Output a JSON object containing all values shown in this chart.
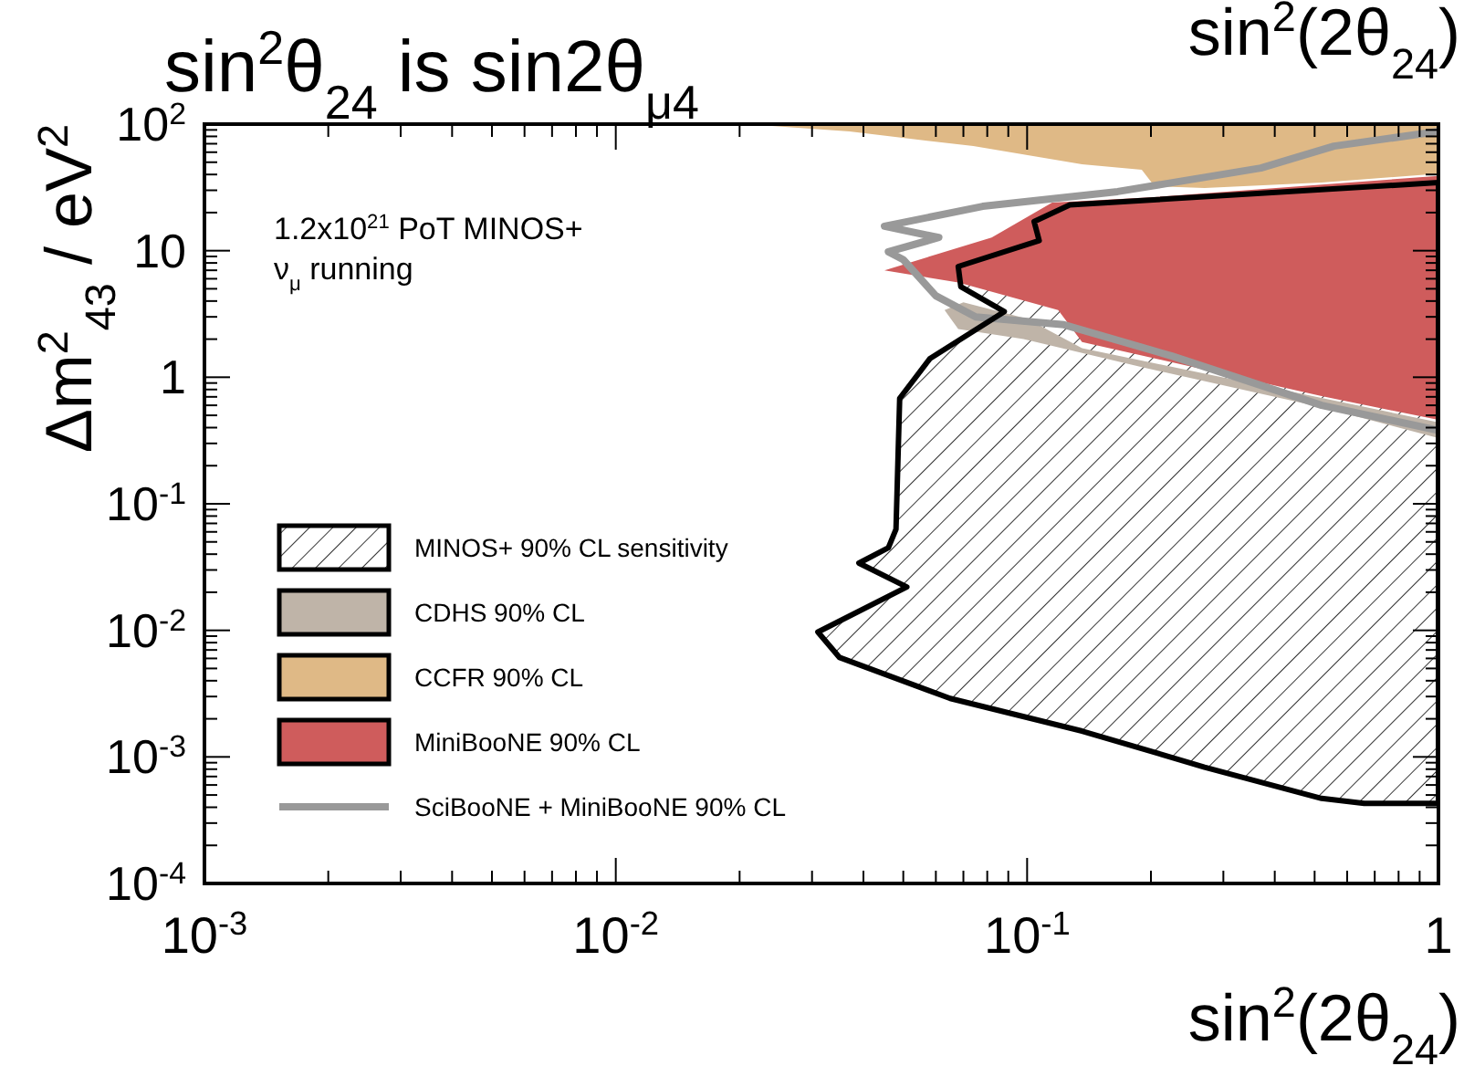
{
  "chart_data": {
    "type": "area",
    "title": "sin$^{2}$θ$_{24}$  is sin2θ$_{μ4}$",
    "xlabel": "sin$^{2}$(2θ$_{24}$)",
    "ylabel": "Δm$^{2}$$_{43}$ / eV$^{2}$",
    "annotations": [
      "sin$^{2}$(2θ$_{24}$)",
      "1.2x10$^{21}$ PoT MINOS+",
      "ν$_{μ}$ running"
    ],
    "log": "xy",
    "legend": "bottom left",
    "xlim": [
      0.001,
      1
    ],
    "ylim": [
      0.0001,
      100
    ],
    "xticks": [
      {
        "value": 0.001,
        "label": "10$^{-3}$"
      },
      {
        "value": 0.002,
        "label": null
      },
      {
        "value": 0.003,
        "label": null
      },
      {
        "value": 0.004,
        "label": null
      },
      {
        "value": 0.005,
        "label": null
      },
      {
        "value": 0.006,
        "label": null
      },
      {
        "value": 0.007,
        "label": null
      },
      {
        "value": 0.008,
        "label": null
      },
      {
        "value": 0.009,
        "label": null
      },
      {
        "value": 0.01,
        "label": "10$^{-2}$"
      },
      {
        "value": 0.02,
        "label": null
      },
      {
        "value": 0.03,
        "label": null
      },
      {
        "value": 0.04,
        "label": null
      },
      {
        "value": 0.05,
        "label": null
      },
      {
        "value": 0.06,
        "label": null
      },
      {
        "value": 0.07,
        "label": null
      },
      {
        "value": 0.08,
        "label": null
      },
      {
        "value": 0.09,
        "label": null
      },
      {
        "value": 0.1,
        "label": "10$^{-1}$"
      },
      {
        "value": 0.2,
        "label": null
      },
      {
        "value": 0.3,
        "label": null
      },
      {
        "value": 0.4,
        "label": null
      },
      {
        "value": 0.5,
        "label": null
      },
      {
        "value": 0.6,
        "label": null
      },
      {
        "value": 0.7,
        "label": null
      },
      {
        "value": 0.8,
        "label": null
      },
      {
        "value": 0.9,
        "label": null
      },
      1
    ],
    "yticks": [
      {
        "value": 0.0001,
        "label": "10$^{-4}$"
      },
      {
        "value": 0.0002,
        "label": null
      },
      {
        "value": 0.0003,
        "label": null
      },
      {
        "value": 0.0004,
        "label": null
      },
      {
        "value": 0.0005,
        "label": null
      },
      {
        "value": 0.0006,
        "label": null
      },
      {
        "value": 0.0007,
        "label": null
      },
      {
        "value": 0.0008,
        "label": null
      },
      {
        "value": 0.0009,
        "label": null
      },
      {
        "value": 0.001,
        "label": "10$^{-3}$"
      },
      {
        "value": 0.002,
        "label": null
      },
      {
        "value": 0.003,
        "label": null
      },
      {
        "value": 0.004,
        "label": null
      },
      {
        "value": 0.005,
        "label": null
      },
      {
        "value": 0.006,
        "label": null
      },
      {
        "value": 0.007,
        "label": null
      },
      {
        "value": 0.008,
        "label": null
      },
      {
        "value": 0.009,
        "label": null
      },
      {
        "value": 0.01,
        "label": "10$^{-2}$"
      },
      {
        "value": 0.02,
        "label": null
      },
      {
        "value": 0.03,
        "label": null
      },
      {
        "value": 0.04,
        "label": null
      },
      {
        "value": 0.05,
        "label": null
      },
      {
        "value": 0.06,
        "label": null
      },
      {
        "value": 0.07,
        "label": null
      },
      {
        "value": 0.08,
        "label": null
      },
      {
        "value": 0.09,
        "label": null
      },
      {
        "value": 0.1,
        "label": "10$^{-1}$"
      },
      {
        "value": 0.2,
        "label": null
      },
      {
        "value": 0.3,
        "label": null
      },
      {
        "value": 0.4,
        "label": null
      },
      {
        "value": 0.5,
        "label": null
      },
      {
        "value": 0.6,
        "label": null
      },
      {
        "value": 0.7,
        "label": null
      },
      {
        "value": 0.8,
        "label": null
      },
      {
        "value": 0.9,
        "label": null
      },
      1,
      {
        "value": 2,
        "label": null
      },
      {
        "value": 3,
        "label": null
      },
      {
        "value": 4,
        "label": null
      },
      {
        "value": 5,
        "label": null
      },
      {
        "value": 6,
        "label": null
      },
      {
        "value": 7,
        "label": null
      },
      {
        "value": 8,
        "label": null
      },
      {
        "value": 9,
        "label": null
      },
      10,
      {
        "value": 20,
        "label": null
      },
      {
        "value": 30,
        "label": null
      },
      {
        "value": 40,
        "label": null
      },
      {
        "value": 50,
        "label": null
      },
      {
        "value": 60,
        "label": null
      },
      {
        "value": 70,
        "label": null
      },
      {
        "value": 80,
        "label": null
      },
      {
        "value": 90,
        "label": null
      },
      {
        "value": 100,
        "label": "10$^{2}$"
      }
    ],
    "series": [
      {
        "name": "MINOS+ 90% CL sensitivity",
        "color": "#000000",
        "x": [
          1,
          0.127,
          0.104,
          0.107,
          0.068,
          0.069,
          0.088,
          0.058,
          0.049,
          0.048,
          0.046,
          0.039,
          0.051,
          0.031,
          0.035,
          0.065,
          0.136,
          0.27,
          0.52,
          0.66,
          1
        ],
        "values": [
          34.5,
          23,
          17,
          12,
          7.5,
          5.2,
          3.3,
          1.4,
          0.68,
          0.063,
          0.045,
          0.034,
          0.022,
          0.0097,
          0.0061,
          0.0029,
          0.0016,
          0.00083,
          0.00047,
          0.00043,
          0.00043
        ]
      },
      {
        "name": "CDHS 90% CL",
        "color": "#bfb4a8",
        "x": [
          0.07,
          0.063,
          0.068,
          0.098,
          0.19,
          0.52,
          1,
          1,
          0.136,
          0.1
        ],
        "values": [
          3.9,
          3.4,
          2.4,
          2,
          1.2,
          0.58,
          0.33,
          0.44,
          1.7,
          2.9
        ]
      },
      {
        "name": "CCFR 90% CL",
        "color": "#dfb986",
        "x": [
          0.0207,
          1,
          1,
          0.52,
          0.27,
          0.204,
          0.19,
          0.136,
          0.074,
          0.037
        ],
        "values": [
          100,
          100,
          40.7,
          34.5,
          31.3,
          32.3,
          43.6,
          48.2,
          67,
          87.5
        ]
      },
      {
        "name": "MiniBooNE 90% CL",
        "color": "#cf5c5c",
        "x": [
          1,
          0.204,
          0.115,
          0.082,
          0.045,
          0.068,
          0.119,
          0.136,
          0.52,
          1
        ],
        "values": [
          39,
          26.5,
          24,
          12.7,
          7,
          5.6,
          3.4,
          1.9,
          0.71,
          0.46
        ]
      },
      {
        "name": "SciBooNE + MiniBooNE 90% CL",
        "type": "line",
        "color": "#999999",
        "x": [
          1,
          0.557,
          0.37,
          0.166,
          0.078,
          0.045,
          0.061,
          0.046,
          0.05,
          0.06,
          0.075,
          0.123,
          0.225,
          0.52,
          1
        ],
        "values": [
          87.5,
          67,
          45,
          29.3,
          22.4,
          15.6,
          12.7,
          9.8,
          8.5,
          4.4,
          3.0,
          2.6,
          1.47,
          0.6,
          0.38
        ]
      }
    ]
  }
}
